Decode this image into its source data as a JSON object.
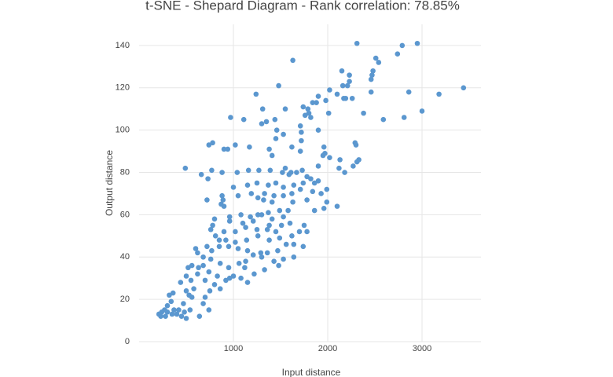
{
  "chart_data": {
    "type": "scatter",
    "title": "t-SNE - Shepard Diagram - Rank correlation: 78.85%",
    "x_label": "Input distance",
    "y_label": "Output distance",
    "color": "#5b97cf",
    "grid": true,
    "xlim": [
      0,
      3625
    ],
    "ylim": [
      0,
      150
    ],
    "xticks": [
      1000,
      2000,
      3000
    ],
    "yticks": [
      0,
      20,
      40,
      60,
      80,
      100,
      120,
      140
    ],
    "x": [
      2310,
      2950,
      2790,
      2740,
      2510,
      2540,
      1630,
      2480,
      2470,
      2150,
      2230,
      2230,
      2210,
      2460,
      2160,
      2020,
      2100,
      1480,
      1240,
      3440,
      3180,
      2860,
      2460,
      2170,
      2190,
      2260,
      1980,
      1900,
      1840,
      1880,
      1740,
      1790,
      1800,
      1550,
      1310,
      3000,
      2810,
      2590,
      2380,
      2010,
      1820,
      1760,
      970,
      1110,
      1440,
      1350,
      1300,
      1460,
      1710,
      1720,
      1900,
      1530,
      1450,
      1720,
      1620,
      780,
      740,
      1020,
      940,
      900,
      1170,
      2290,
      2300,
      1960,
      1970,
      1380,
      1710,
      1410,
      1950,
      2020,
      2130,
      2310,
      2330,
      2270,
      2120,
      2180,
      1900,
      1730,
      1550,
      1610,
      1670,
      1520,
      1390,
      1270,
      1160,
      1040,
      880,
      770,
      490,
      660,
      730,
      1590,
      1780,
      1820,
      1860,
      1900,
      1740,
      1640,
      1450,
      1530,
      1370,
      1250,
      1150,
      1000,
      1710,
      1840,
      1930,
      1990,
      1620,
      1530,
      1430,
      1330,
      1190,
      1050,
      880,
      720,
      1260,
      1320,
      1410,
      1630,
      1780,
      1990,
      2100,
      1960,
      1860,
      1580,
      1370,
      1300,
      1180,
      1080,
      960,
      870,
      890,
      900,
      1490,
      1530,
      1410,
      1260,
      1210,
      1100,
      960,
      800,
      780,
      760,
      1380,
      1510,
      1600,
      1750,
      1700,
      1780,
      1620,
      1450,
      1360,
      1250,
      1130,
      1020,
      900,
      810,
      850,
      920,
      1020,
      1140,
      1260,
      1380,
      1490,
      1560,
      1640,
      1740,
      1470,
      1360,
      1290,
      1150,
      1050,
      950,
      850,
      770,
      720,
      600,
      620,
      680,
      760,
      860,
      950,
      1060,
      1130,
      1210,
      1300,
      1430,
      1530,
      1640,
      1480,
      1330,
      1220,
      1120,
      1000,
      920,
      830,
      740,
      680,
      630,
      560,
      520,
      500,
      550,
      620,
      700,
      800,
      860,
      960,
      1080,
      1150,
      750,
      700,
      680,
      740,
      640,
      560,
      500,
      440,
      470,
      420,
      400,
      370,
      340,
      320,
      360,
      300,
      270,
      240,
      210,
      230,
      280,
      300,
      350,
      450,
      500,
      540,
      480,
      580,
      530
    ],
    "values": [
      141,
      141,
      140,
      136,
      134,
      132,
      133,
      128,
      126,
      128,
      126,
      123,
      121,
      124,
      121,
      119,
      117,
      121,
      117,
      120,
      117,
      118,
      118,
      115,
      115,
      115,
      114,
      116,
      113,
      113,
      111,
      110,
      108,
      110,
      110,
      109,
      106,
      105,
      108,
      108,
      106,
      107,
      106,
      105,
      105,
      104,
      103,
      100,
      102,
      99,
      100,
      98,
      96,
      95,
      92,
      94,
      93,
      93,
      91,
      91,
      92,
      94,
      93,
      92,
      89,
      91,
      90,
      88,
      88,
      87,
      86,
      85,
      86,
      83,
      82,
      80,
      83,
      81,
      82,
      80,
      80,
      80,
      81,
      81,
      81,
      80,
      80,
      81,
      82,
      79,
      77,
      79,
      78,
      77,
      75,
      76,
      75,
      74,
      75,
      73,
      74,
      75,
      74,
      73,
      72,
      71,
      70,
      72,
      70,
      69,
      69,
      70,
      70,
      69,
      69,
      67,
      68,
      67,
      66,
      66,
      67,
      66,
      64,
      63,
      62,
      62,
      61,
      60,
      59,
      60,
      59,
      65,
      67,
      64,
      62,
      59,
      58,
      60,
      57,
      56,
      57,
      58,
      55,
      53,
      55,
      55,
      56,
      55,
      52,
      52,
      50,
      52,
      53,
      53,
      54,
      52,
      52,
      50,
      48,
      48,
      47,
      48,
      50,
      48,
      49,
      46,
      46,
      45,
      43,
      42,
      42,
      43,
      44,
      45,
      45,
      43,
      45,
      44,
      42,
      40,
      39,
      37,
      35,
      37,
      38,
      41,
      40,
      38,
      39,
      40,
      36,
      34,
      32,
      35,
      31,
      29,
      31,
      33,
      36,
      35,
      36,
      35,
      31,
      29,
      32,
      29,
      27,
      25,
      30,
      30,
      28,
      24,
      21,
      18,
      15,
      12,
      21,
      24,
      28,
      18,
      15,
      13,
      15,
      19,
      22,
      23,
      17,
      15,
      14,
      13,
      12,
      12,
      14,
      13,
      12,
      11,
      15,
      14,
      25,
      22
    ]
  }
}
